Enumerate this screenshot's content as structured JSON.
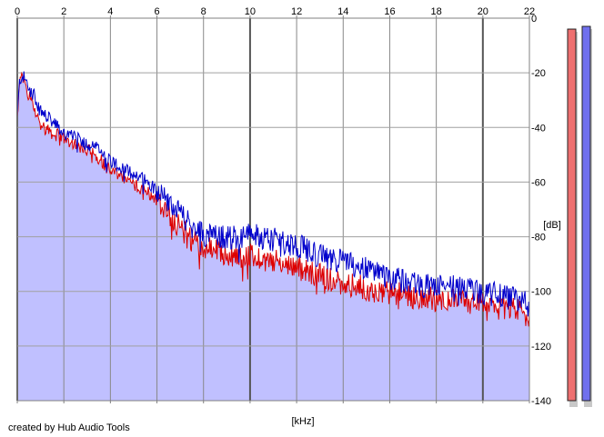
{
  "footer": {
    "credit": "created by Hub Audio Tools"
  },
  "chart_data": {
    "type": "area",
    "xlabel": "[kHz]",
    "ylabel": "[dB]",
    "xlim": [
      0,
      22
    ],
    "ylim": [
      -140,
      0
    ],
    "x_ticks": [
      0,
      2,
      4,
      6,
      8,
      10,
      12,
      14,
      16,
      18,
      20,
      22
    ],
    "y_ticks": [
      0,
      -20,
      -40,
      -60,
      -80,
      -100,
      -120,
      -140
    ],
    "grid": true,
    "fill_color": "#c0c0ff",
    "series": [
      {
        "color": "#0000cc",
        "x": [
          0,
          0.1,
          0.2,
          0.3,
          0.5,
          0.7,
          1,
          1.5,
          2,
          2.5,
          3,
          3.5,
          4,
          4.5,
          5,
          5.5,
          6,
          6.5,
          7,
          7.5,
          8,
          8.5,
          9,
          9.5,
          10,
          10.5,
          11,
          11.5,
          12,
          12.5,
          13,
          13.5,
          14,
          14.5,
          15,
          15.5,
          16,
          16.5,
          17,
          17.5,
          18,
          18.5,
          19,
          19.5,
          20,
          20.5,
          21,
          21.5,
          22
        ],
        "values": [
          -36,
          -23,
          -21,
          -22,
          -25,
          -28,
          -34,
          -38,
          -42,
          -44,
          -46,
          -48,
          -52,
          -55,
          -57,
          -59,
          -63,
          -67,
          -72,
          -76,
          -79,
          -80,
          -80,
          -80,
          -79,
          -80,
          -81,
          -82,
          -83,
          -85,
          -87,
          -88,
          -89,
          -90,
          -92,
          -93,
          -95,
          -96,
          -97,
          -98,
          -98,
          -98,
          -99,
          -99,
          -101,
          -101,
          -102,
          -103,
          -105
        ]
      },
      {
        "color": "#dd0000",
        "x": [
          0,
          0.1,
          0.2,
          0.3,
          0.5,
          0.7,
          1,
          1.5,
          2,
          2.5,
          3,
          3.5,
          4,
          4.5,
          5,
          5.5,
          6,
          6.5,
          7,
          7.5,
          8,
          8.5,
          9,
          9.5,
          10,
          10.5,
          11,
          11.5,
          12,
          12.5,
          13,
          13.5,
          14,
          14.5,
          15,
          15.5,
          16,
          16.5,
          17,
          17.5,
          18,
          18.5,
          19,
          19.5,
          20,
          20.5,
          21,
          21.5,
          22
        ],
        "values": [
          -36,
          -24,
          -22,
          -24,
          -28,
          -32,
          -39,
          -42,
          -44,
          -46,
          -48,
          -51,
          -56,
          -58,
          -61,
          -63,
          -66,
          -71,
          -77,
          -81,
          -84,
          -85,
          -87,
          -87,
          -87,
          -88,
          -89,
          -90,
          -91,
          -93,
          -94,
          -96,
          -97,
          -98,
          -99,
          -100,
          -101,
          -101,
          -102,
          -102,
          -103,
          -103,
          -104,
          -104,
          -105,
          -106,
          -106,
          -107,
          -109
        ]
      }
    ],
    "level_meters": [
      {
        "color": "#ee7070",
        "value": -4
      },
      {
        "color": "#7070ee",
        "value": -3
      }
    ]
  }
}
